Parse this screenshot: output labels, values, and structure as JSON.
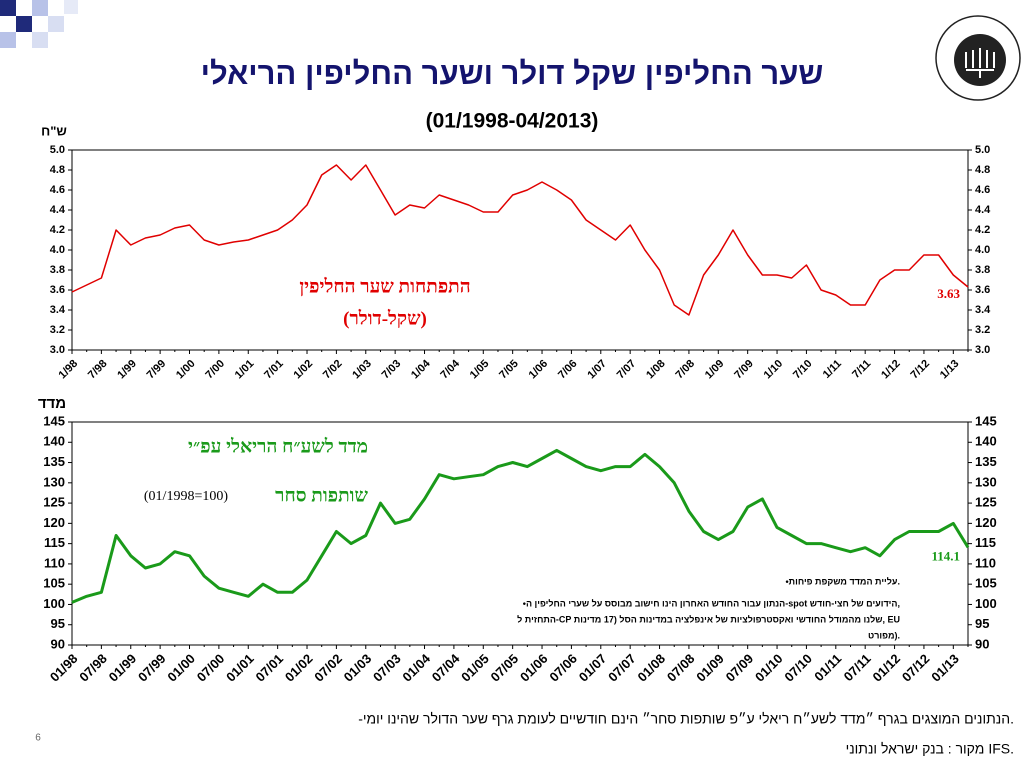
{
  "slide": {
    "title": "שער החליפין שקל דולר ושער החליפין הריאלי",
    "subtitle": "(01/1998-04/2013)",
    "logo": "בנק ישראל BANK OF ISRAEL",
    "footnote": "-הנתונים המוצגים בגרף ״מדד לשע״ח ריאלי ע״פ שותפות סחר״ הינם חודשיים לעומת גרף שער הדולר שהינו יומי.",
    "source": "מקור : בנק ישראל ונתוני IFS.",
    "page": "6"
  },
  "chart_data": [
    {
      "type": "line",
      "y_label": "ש\"ח",
      "annotation": [
        "התפתחות שער החליפין",
        "(שקל-דולר)"
      ],
      "categories": [
        "1/98",
        null,
        "7/98",
        null,
        "1/99",
        null,
        "7/99",
        null,
        "1/00",
        null,
        "7/00",
        null,
        "1/01",
        null,
        "7/01",
        null,
        "1/02",
        null,
        "7/02",
        null,
        "1/03",
        null,
        "7/03",
        null,
        "1/04",
        null,
        "7/04",
        null,
        "1/05",
        null,
        "7/05",
        null,
        "1/06",
        null,
        "7/06",
        null,
        "1/07",
        null,
        "7/07",
        null,
        "1/08",
        null,
        "7/08",
        null,
        "1/09",
        null,
        "7/09",
        null,
        "1/10",
        null,
        "7/10",
        null,
        "1/11",
        null,
        "7/11",
        null,
        "1/12",
        null,
        "7/12",
        null,
        "1/13",
        null
      ],
      "series": [
        {
          "name": "שער החליפין",
          "color": "#e00000",
          "values": [
            3.58,
            3.65,
            3.72,
            4.2,
            4.05,
            4.12,
            4.15,
            4.22,
            4.25,
            4.1,
            4.05,
            4.08,
            4.1,
            4.15,
            4.2,
            4.3,
            4.45,
            4.75,
            4.85,
            4.7,
            4.85,
            4.6,
            4.35,
            4.45,
            4.42,
            4.55,
            4.5,
            4.45,
            4.38,
            4.38,
            4.55,
            4.6,
            4.68,
            4.6,
            4.5,
            4.3,
            4.2,
            4.1,
            4.25,
            4.0,
            3.8,
            3.45,
            3.35,
            3.75,
            3.95,
            4.2,
            3.95,
            3.75,
            3.75,
            3.72,
            3.85,
            3.6,
            3.55,
            3.45,
            3.45,
            3.7,
            3.8,
            3.8,
            3.95,
            3.95,
            3.75,
            3.63
          ]
        }
      ],
      "ylim": [
        3,
        5
      ],
      "yticks": [
        {
          "value": 3,
          "label": "3.0"
        },
        {
          "value": 3.2,
          "label": "3.2"
        },
        {
          "value": 3.4,
          "label": "3.4"
        },
        {
          "value": 3.6,
          "label": "3.6"
        },
        {
          "value": 3.8,
          "label": "3.8"
        },
        {
          "value": 4,
          "label": "4.0"
        },
        {
          "value": 4.2,
          "label": "4.2"
        },
        {
          "value": 4.4,
          "label": "4.4"
        },
        {
          "value": 4.6,
          "label": "4.6"
        },
        {
          "value": 4.8,
          "label": "4.8"
        },
        {
          "value": 5,
          "label": "5.0"
        }
      ]
    },
    {
      "type": "line",
      "y_label": "מדד",
      "annotation": [
        "מדד לשע״ח הריאלי עפ״י",
        "שותפות סחר",
        "(01/1998=100)"
      ],
      "notes": [
        "•עליית המדד משקפת פיחות.",
        "•הנתון עבור החודש האחרון הינו חישוב מבוסס על שערי החליפין ה-spot הידועים של חצי-חודש,",
        "התחזית ל-CP שלנו מהמודל החודשי ואקסטרפולציות של אינפלציה במדינות הסל (17 מדינות, EU",
        "מפורט)."
      ],
      "categories": [
        "01/98",
        null,
        "07/98",
        null,
        "01/99",
        null,
        "07/99",
        null,
        "01/00",
        null,
        "07/00",
        null,
        "01/01",
        null,
        "07/01",
        null,
        "01/02",
        null,
        "07/02",
        null,
        "01/03",
        null,
        "07/03",
        null,
        "01/04",
        null,
        "07/04",
        null,
        "01/05",
        null,
        "07/05",
        null,
        "01/06",
        null,
        "07/06",
        null,
        "01/07",
        null,
        "07/07",
        null,
        "01/08",
        null,
        "07/08",
        null,
        "01/09",
        null,
        "07/09",
        null,
        "01/10",
        null,
        "07/10",
        null,
        "01/11",
        null,
        "07/11",
        null,
        "01/12",
        null,
        "07/12",
        null,
        "01/13",
        null
      ],
      "series": [
        {
          "name": "מדד לשע״ח הריאלי",
          "color": "#1a9a1a",
          "values": [
            100.5,
            102,
            103,
            117,
            112,
            109,
            110,
            113,
            112,
            107,
            104,
            103,
            102,
            105,
            103,
            103,
            106,
            112,
            118,
            115,
            117,
            125,
            120,
            121,
            126,
            132,
            131,
            131.5,
            132,
            134,
            135,
            134,
            136,
            138,
            136,
            134,
            133,
            134,
            134,
            137,
            134,
            130,
            123,
            118,
            116,
            118,
            124,
            126,
            119,
            117,
            115,
            115,
            114,
            113,
            114,
            112,
            116,
            118,
            118,
            118,
            120,
            114.1
          ]
        }
      ],
      "ylim": [
        90,
        145
      ],
      "yticks": [
        90,
        95,
        100,
        105,
        110,
        115,
        120,
        125,
        130,
        135,
        140,
        145
      ]
    }
  ]
}
